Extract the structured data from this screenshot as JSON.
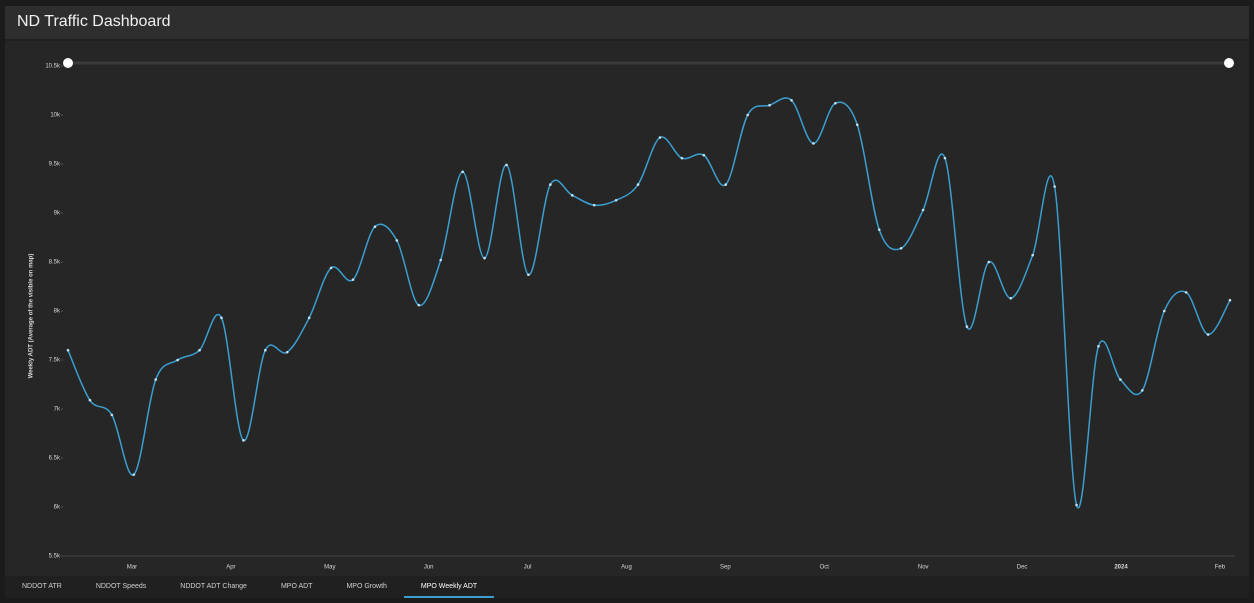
{
  "header": {
    "title": "ND Traffic Dashboard"
  },
  "chart_data": {
    "type": "line",
    "y_label": "Weekly ADT (Average of the visible on map)",
    "xtick_labels": [
      "Mar",
      "Apr",
      "May",
      "Jun",
      "Jul",
      "Aug",
      "Sep",
      "Oct",
      "Nov",
      "Dec",
      "2024",
      "Feb"
    ],
    "series": [
      {
        "name": "Weekly ADT",
        "color": "#3a9fd0",
        "values": [
          7600,
          7090,
          6940,
          6330,
          7300,
          7500,
          7600,
          7930,
          6680,
          7600,
          7580,
          7930,
          8440,
          8320,
          8860,
          8720,
          8060,
          8520,
          9420,
          8540,
          9490,
          8370,
          9290,
          9180,
          9080,
          9130,
          9290,
          9770,
          9560,
          9590,
          9290,
          10000,
          10100,
          10150,
          9710,
          10120,
          9900,
          8830,
          8640,
          9030,
          9560,
          7840,
          8500,
          8130,
          8570,
          9270,
          6020,
          7640,
          7300,
          7190,
          8000,
          8190,
          7760,
          8110
        ]
      }
    ],
    "ylim": [
      5500,
      10500
    ],
    "yticks": [
      {
        "value": 5500,
        "label": "5.5k"
      },
      {
        "value": 6000,
        "label": "6k"
      },
      {
        "value": 6500,
        "label": "6.5k"
      },
      {
        "value": 7000,
        "label": "7k"
      },
      {
        "value": 7500,
        "label": "7.5k"
      },
      {
        "value": 8000,
        "label": "8k"
      },
      {
        "value": 8500,
        "label": "8.5k"
      },
      {
        "value": 9000,
        "label": "9k"
      },
      {
        "value": 9500,
        "label": "9.5k"
      },
      {
        "value": 10000,
        "label": "10k"
      },
      {
        "value": 10500,
        "label": "10.5k"
      }
    ],
    "grid": false
  },
  "tabs": [
    "NDDOT ATR",
    "NDDOT Speeds",
    "NDDOT ADT Change",
    "MPO ADT",
    "MPO Growth",
    "MPO Weekly ADT"
  ],
  "active_tab": 5
}
